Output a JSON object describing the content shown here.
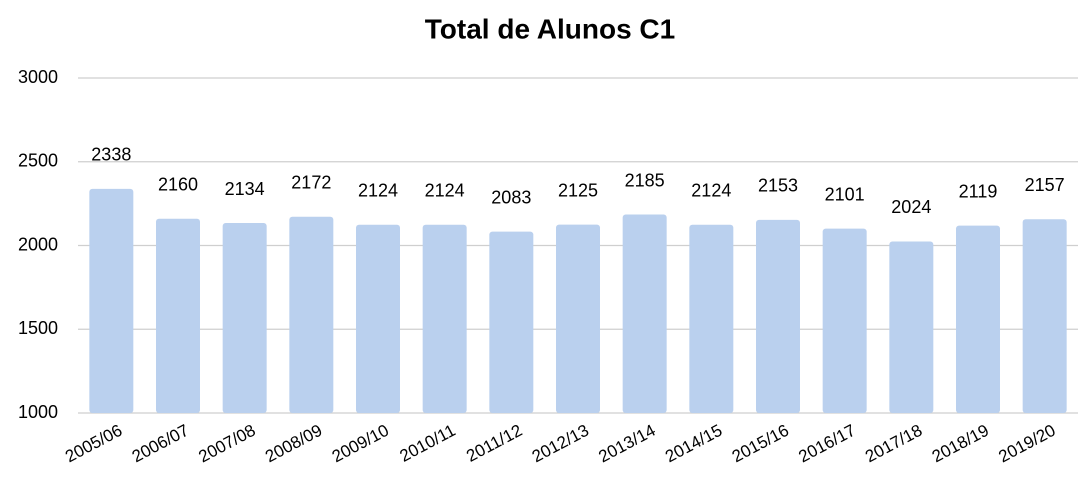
{
  "chart_data": {
    "type": "bar",
    "title": "Total de Alunos C1",
    "categories": [
      "2005/06",
      "2006/07",
      "2007/08",
      "2008/09",
      "2009/10",
      "2010/11",
      "2011/12",
      "2012/13",
      "2013/14",
      "2014/15",
      "2015/16",
      "2016/17",
      "2017/18",
      "2018/19",
      "2019/20"
    ],
    "values": [
      2338,
      2160,
      2134,
      2172,
      2124,
      2124,
      2083,
      2125,
      2185,
      2124,
      2153,
      2101,
      2024,
      2119,
      2157
    ],
    "color": "#bad0ee",
    "ylim": [
      1000,
      3000
    ],
    "yticks": [
      1000,
      1500,
      2000,
      2500,
      3000
    ],
    "grid": true
  }
}
